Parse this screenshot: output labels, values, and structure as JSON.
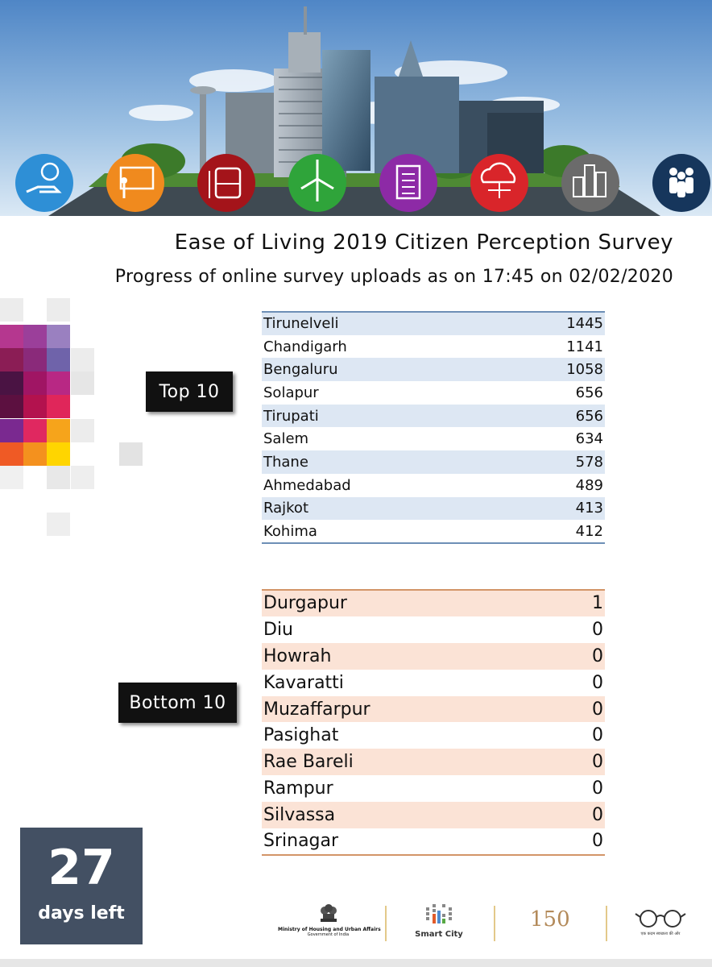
{
  "header": {
    "title": "Ease of Living 2019 Citizen Perception Survey",
    "subtitle": "Progress of online survey uploads as on 17:45 on 02/02/2020"
  },
  "banner_icons": [
    {
      "name": "money-hand-icon",
      "color": "#2e8fd6"
    },
    {
      "name": "teacher-board-icon",
      "color": "#f08a1e"
    },
    {
      "name": "bus-icon",
      "color": "#a4141a"
    },
    {
      "name": "wind-turbine-icon",
      "color": "#2fa43a"
    },
    {
      "name": "document-list-icon",
      "color": "#8d2aa6"
    },
    {
      "name": "cloud-network-icon",
      "color": "#d9252a"
    },
    {
      "name": "city-buildings-icon",
      "color": "#6b6b6b"
    },
    {
      "name": "people-group-icon",
      "color": "#16365c"
    }
  ],
  "top10": {
    "label": "Top 10",
    "rows": [
      {
        "city": "Tirunelveli",
        "value": "1445"
      },
      {
        "city": "Chandigarh",
        "value": "1141"
      },
      {
        "city": "Bengaluru",
        "value": "1058"
      },
      {
        "city": "Solapur",
        "value": "656"
      },
      {
        "city": "Tirupati",
        "value": "656"
      },
      {
        "city": "Salem",
        "value": "634"
      },
      {
        "city": "Thane",
        "value": "578"
      },
      {
        "city": "Ahmedabad",
        "value": "489"
      },
      {
        "city": "Rajkot",
        "value": "413"
      },
      {
        "city": "Kohima",
        "value": "412"
      }
    ]
  },
  "bottom10": {
    "label": "Bottom 10",
    "rows": [
      {
        "city": "Durgapur",
        "value": "1"
      },
      {
        "city": "Diu",
        "value": "0"
      },
      {
        "city": "Howrah",
        "value": "0"
      },
      {
        "city": "Kavaratti",
        "value": "0"
      },
      {
        "city": "Muzaffarpur",
        "value": "0"
      },
      {
        "city": "Pasighat",
        "value": "0"
      },
      {
        "city": "Rae Bareli",
        "value": "0"
      },
      {
        "city": "Rampur",
        "value": "0"
      },
      {
        "city": "Silvassa",
        "value": "0"
      },
      {
        "city": "Srinagar",
        "value": "0"
      }
    ]
  },
  "countdown": {
    "number": "27",
    "label": "days left"
  },
  "logos": {
    "ministry_line1": "Ministry of Housing and Urban Affairs",
    "ministry_line2": "Government of India",
    "smart_city": "Smart City",
    "anniversary_number": "150",
    "swachh_tagline": "एक कदम स्वच्छता की ओर"
  }
}
